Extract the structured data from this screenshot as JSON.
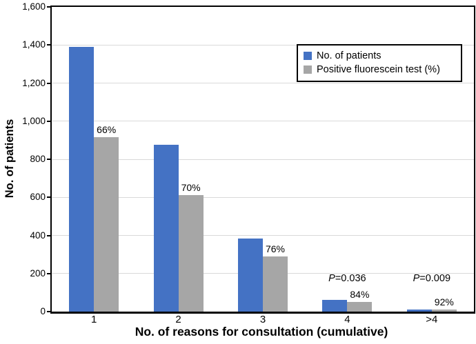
{
  "chart_data": {
    "type": "bar",
    "title": "",
    "categories": [
      "1",
      "2",
      "3",
      "4",
      ">4"
    ],
    "series": [
      {
        "name": "No. of patients",
        "color": "#4472C4",
        "values": [
          1390,
          875,
          382,
          62,
          12
        ]
      },
      {
        "name": "Positive fluorescein test (%)",
        "color": "#A6A6A6",
        "values": [
          917,
          613,
          290,
          52,
          11
        ]
      }
    ],
    "bar_labels": {
      "on_series": "Positive fluorescein test (%)",
      "labels": [
        "66%",
        "70%",
        "76%",
        "84%",
        "92%"
      ]
    },
    "annotations": [
      {
        "category_index": 3,
        "text": "P=0.036",
        "italic_prefix": "P"
      },
      {
        "category_index": 4,
        "text": "P=0.009",
        "italic_prefix": "P"
      }
    ],
    "xlabel": "No. of reasons for consultation (cumulative)",
    "ylabel": "No. of patients",
    "ylim": [
      0,
      1600
    ],
    "yticks": [
      {
        "value": 0,
        "label": "0"
      },
      {
        "value": 200,
        "label": "200"
      },
      {
        "value": 400,
        "label": "400"
      },
      {
        "value": 600,
        "label": "600"
      },
      {
        "value": 800,
        "label": "800"
      },
      {
        "value": 1000,
        "label": "1,000"
      },
      {
        "value": 1200,
        "label": "1,200"
      },
      {
        "value": 1400,
        "label": "1,400"
      },
      {
        "value": 1600,
        "label": "1,600"
      }
    ],
    "grid": true,
    "legend_position": "upper right",
    "colors": {
      "grid": "#D9D9D9",
      "axis": "#000000",
      "background": "#FFFFFF",
      "text": "#000000"
    }
  }
}
